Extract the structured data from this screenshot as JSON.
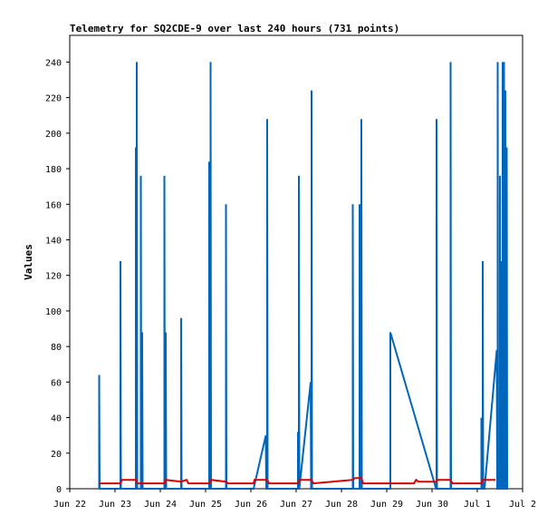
{
  "chart_data": {
    "type": "line",
    "title": "Telemetry for SQ2CDE-9 over last 240 hours (731 points)",
    "xlabel": "",
    "ylabel": "Values",
    "ylim": [
      0,
      255
    ],
    "yticks": [
      0,
      20,
      40,
      60,
      80,
      100,
      120,
      140,
      160,
      180,
      200,
      220,
      240
    ],
    "xlim": [
      "Jun 22",
      "Jul 2"
    ],
    "xticks": [
      "Jun 22",
      "Jun 23",
      "Jun 24",
      "Jun 25",
      "Jun 26",
      "Jun 27",
      "Jun 28",
      "Jun 29",
      "Jun 30",
      "Jul 1",
      "Jul 2"
    ],
    "grid": false,
    "series": [
      {
        "color": "#0066bb",
        "points": [
          [
            0.65,
            0
          ],
          [
            0.65,
            64
          ],
          [
            0.66,
            0
          ],
          [
            1.12,
            0
          ],
          [
            1.12,
            128
          ],
          [
            1.13,
            0
          ],
          [
            1.46,
            0
          ],
          [
            1.46,
            192
          ],
          [
            1.47,
            0
          ],
          [
            1.48,
            0
          ],
          [
            1.48,
            240
          ],
          [
            1.49,
            0
          ],
          [
            1.57,
            0
          ],
          [
            1.57,
            176
          ],
          [
            1.58,
            0
          ],
          [
            1.6,
            0
          ],
          [
            1.6,
            88
          ],
          [
            1.61,
            0
          ],
          [
            2.09,
            0
          ],
          [
            2.09,
            176
          ],
          [
            2.1,
            0
          ],
          [
            2.12,
            0
          ],
          [
            2.12,
            88
          ],
          [
            2.13,
            0
          ],
          [
            2.46,
            0
          ],
          [
            2.46,
            96
          ],
          [
            2.47,
            0
          ],
          [
            3.08,
            0
          ],
          [
            3.08,
            184
          ],
          [
            3.09,
            0
          ],
          [
            3.11,
            0
          ],
          [
            3.11,
            240
          ],
          [
            3.12,
            0
          ],
          [
            3.45,
            0
          ],
          [
            3.45,
            160
          ],
          [
            3.46,
            0
          ],
          [
            4.06,
            0
          ],
          [
            4.33,
            30
          ],
          [
            4.34,
            0
          ],
          [
            4.36,
            0
          ],
          [
            4.36,
            208
          ],
          [
            4.37,
            0
          ],
          [
            5.04,
            0
          ],
          [
            5.04,
            32
          ],
          [
            5.05,
            0
          ],
          [
            5.06,
            0
          ],
          [
            5.06,
            176
          ],
          [
            5.07,
            0
          ],
          [
            5.32,
            60
          ],
          [
            5.33,
            0
          ],
          [
            5.34,
            0
          ],
          [
            5.34,
            224
          ],
          [
            5.35,
            0
          ],
          [
            6.25,
            0
          ],
          [
            6.25,
            160
          ],
          [
            6.26,
            0
          ],
          [
            6.4,
            0
          ],
          [
            6.4,
            160
          ],
          [
            6.41,
            0
          ],
          [
            6.44,
            0
          ],
          [
            6.44,
            208
          ],
          [
            6.45,
            0
          ],
          [
            7.08,
            0
          ],
          [
            7.08,
            88
          ],
          [
            8.09,
            0
          ],
          [
            8.1,
            0
          ],
          [
            8.1,
            208
          ],
          [
            8.11,
            0
          ],
          [
            8.41,
            0
          ],
          [
            8.41,
            240
          ],
          [
            8.42,
            0
          ],
          [
            9.09,
            0
          ],
          [
            9.09,
            40
          ],
          [
            9.1,
            0
          ],
          [
            9.12,
            0
          ],
          [
            9.12,
            128
          ],
          [
            9.13,
            0
          ],
          [
            9.16,
            0
          ],
          [
            9.43,
            78
          ],
          [
            9.44,
            0
          ],
          [
            9.45,
            0
          ],
          [
            9.45,
            240
          ],
          [
            9.46,
            0
          ],
          [
            9.5,
            0
          ],
          [
            9.5,
            176
          ],
          [
            9.51,
            0
          ],
          [
            9.54,
            0
          ],
          [
            9.54,
            128
          ],
          [
            9.55,
            0
          ],
          [
            9.56,
            0
          ],
          [
            9.56,
            240
          ],
          [
            9.57,
            0
          ],
          [
            9.59,
            0
          ],
          [
            9.59,
            240
          ],
          [
            9.6,
            0
          ],
          [
            9.62,
            0
          ],
          [
            9.62,
            224
          ],
          [
            9.63,
            0
          ],
          [
            9.65,
            0
          ],
          [
            9.65,
            192
          ],
          [
            9.66,
            0
          ]
        ]
      },
      {
        "color": "#dd0000",
        "points": [
          [
            0.65,
            3
          ],
          [
            1.12,
            3
          ],
          [
            1.15,
            5
          ],
          [
            1.46,
            5
          ],
          [
            1.5,
            3
          ],
          [
            2.09,
            3
          ],
          [
            2.12,
            5
          ],
          [
            2.46,
            4
          ],
          [
            2.58,
            5
          ],
          [
            2.62,
            3
          ],
          [
            3.08,
            3
          ],
          [
            3.12,
            5
          ],
          [
            3.45,
            4
          ],
          [
            3.5,
            3
          ],
          [
            4.06,
            3
          ],
          [
            4.08,
            5
          ],
          [
            4.36,
            5
          ],
          [
            4.4,
            3
          ],
          [
            5.04,
            3
          ],
          [
            5.06,
            5
          ],
          [
            5.34,
            5
          ],
          [
            5.38,
            3
          ],
          [
            5.8,
            4
          ],
          [
            6.25,
            5
          ],
          [
            6.3,
            6
          ],
          [
            6.44,
            6
          ],
          [
            6.48,
            3
          ],
          [
            7.6,
            3
          ],
          [
            7.65,
            5
          ],
          [
            7.7,
            4
          ],
          [
            8.1,
            4
          ],
          [
            8.12,
            5
          ],
          [
            8.41,
            5
          ],
          [
            8.45,
            3
          ],
          [
            9.09,
            3
          ],
          [
            9.12,
            5
          ],
          [
            9.4,
            5
          ]
        ]
      }
    ]
  }
}
